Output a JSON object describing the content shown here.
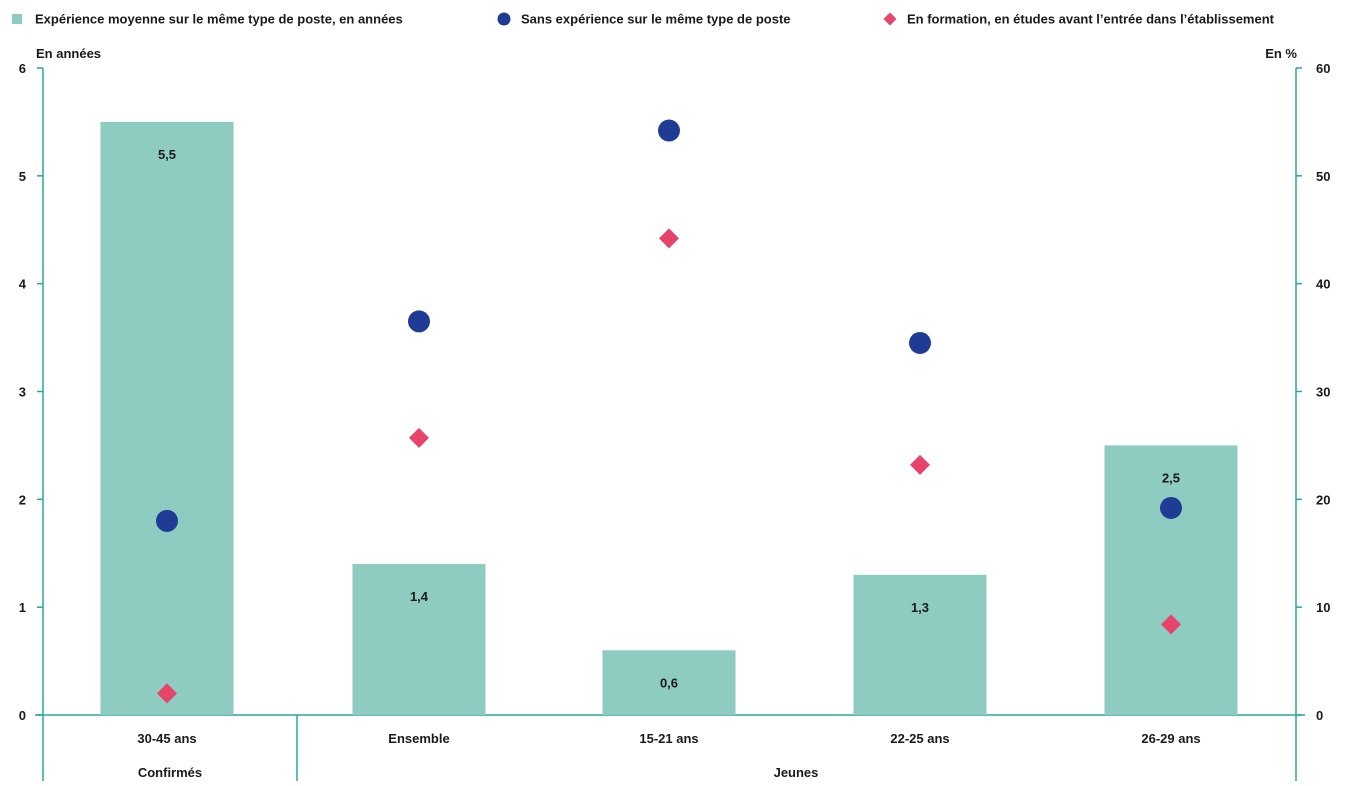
{
  "chart_data": {
    "type": "bar",
    "legend": {
      "placement": "top",
      "entries": [
        {
          "label": "Expérience moyenne sur le même type de poste, en années",
          "marker": "square",
          "color": "#8ecbc0"
        },
        {
          "label": "Sans expérience sur le même type de poste",
          "marker": "circle",
          "color": "#1f3c94"
        },
        {
          "label": "En formation, en études avant l’entrée dans l’établissement",
          "marker": "diamond",
          "color": "#e8436a"
        }
      ]
    },
    "ylabel_left": "En années",
    "ylabel_right": "En %",
    "ylim_left": [
      0,
      6
    ],
    "ylim_right": [
      0,
      60
    ],
    "yticks_left": [
      "0",
      "1",
      "2",
      "3",
      "4",
      "5",
      "6"
    ],
    "yticks_right": [
      "0",
      "10",
      "20",
      "30",
      "40",
      "50",
      "60"
    ],
    "categories": [
      "30-45 ans",
      "Ensemble",
      "15-21 ans",
      "22-25 ans",
      "26-29 ans"
    ],
    "groups": [
      {
        "label": "Confirmés",
        "span": [
          0,
          0
        ]
      },
      {
        "label": "Jeunes",
        "span": [
          1,
          4
        ]
      }
    ],
    "series": [
      {
        "name": "Expérience moyenne sur le même type de poste, en années",
        "type": "bar",
        "axis": "left",
        "values": [
          5.5,
          1.4,
          0.6,
          1.3,
          2.5
        ],
        "labels": [
          "5,5",
          "1,4",
          "0,6",
          "1,3",
          "2,5"
        ],
        "color": "#8ecbc0"
      },
      {
        "name": "Sans expérience sur le même type de poste",
        "type": "scatter",
        "marker": "circle",
        "axis": "right",
        "values": [
          18,
          36.5,
          54.2,
          34.5,
          19.2
        ],
        "color": "#1f3c94"
      },
      {
        "name": "En formation, en études avant l’entrée dans l’établissement",
        "type": "scatter",
        "marker": "diamond",
        "axis": "right",
        "values": [
          2,
          25.7,
          44.2,
          23.2,
          8.4
        ],
        "color": "#e8436a"
      }
    ],
    "axis_color": "#2aa89a",
    "grid": false
  }
}
